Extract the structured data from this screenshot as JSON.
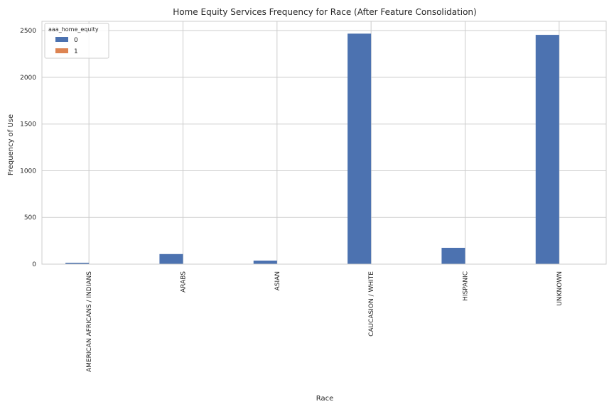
{
  "chart_data": {
    "type": "bar",
    "title": "Home Equity Services Frequency for Race (After Feature Consolidation)",
    "xlabel": "Race",
    "ylabel": "Frequency of Use",
    "categories": [
      "AMERICAN AFRICANS / INDIANS",
      "ARABS",
      "ASIAN",
      "CAUCASION / WHITE",
      "HISPANIC",
      "UNKNOWN"
    ],
    "series": [
      {
        "name": "0",
        "color": "#4c72b0",
        "values": [
          15,
          108,
          38,
          2468,
          175,
          2455
        ]
      },
      {
        "name": "1",
        "color": "#dd8452",
        "values": [
          0,
          0,
          0,
          3,
          0,
          2
        ]
      }
    ],
    "legend_title": "aaa_home_equity",
    "legend_position": "top-left",
    "ylim": [
      0,
      2600
    ],
    "yticks": [
      0,
      500,
      1000,
      1500,
      2000,
      2500
    ],
    "grid": true
  }
}
